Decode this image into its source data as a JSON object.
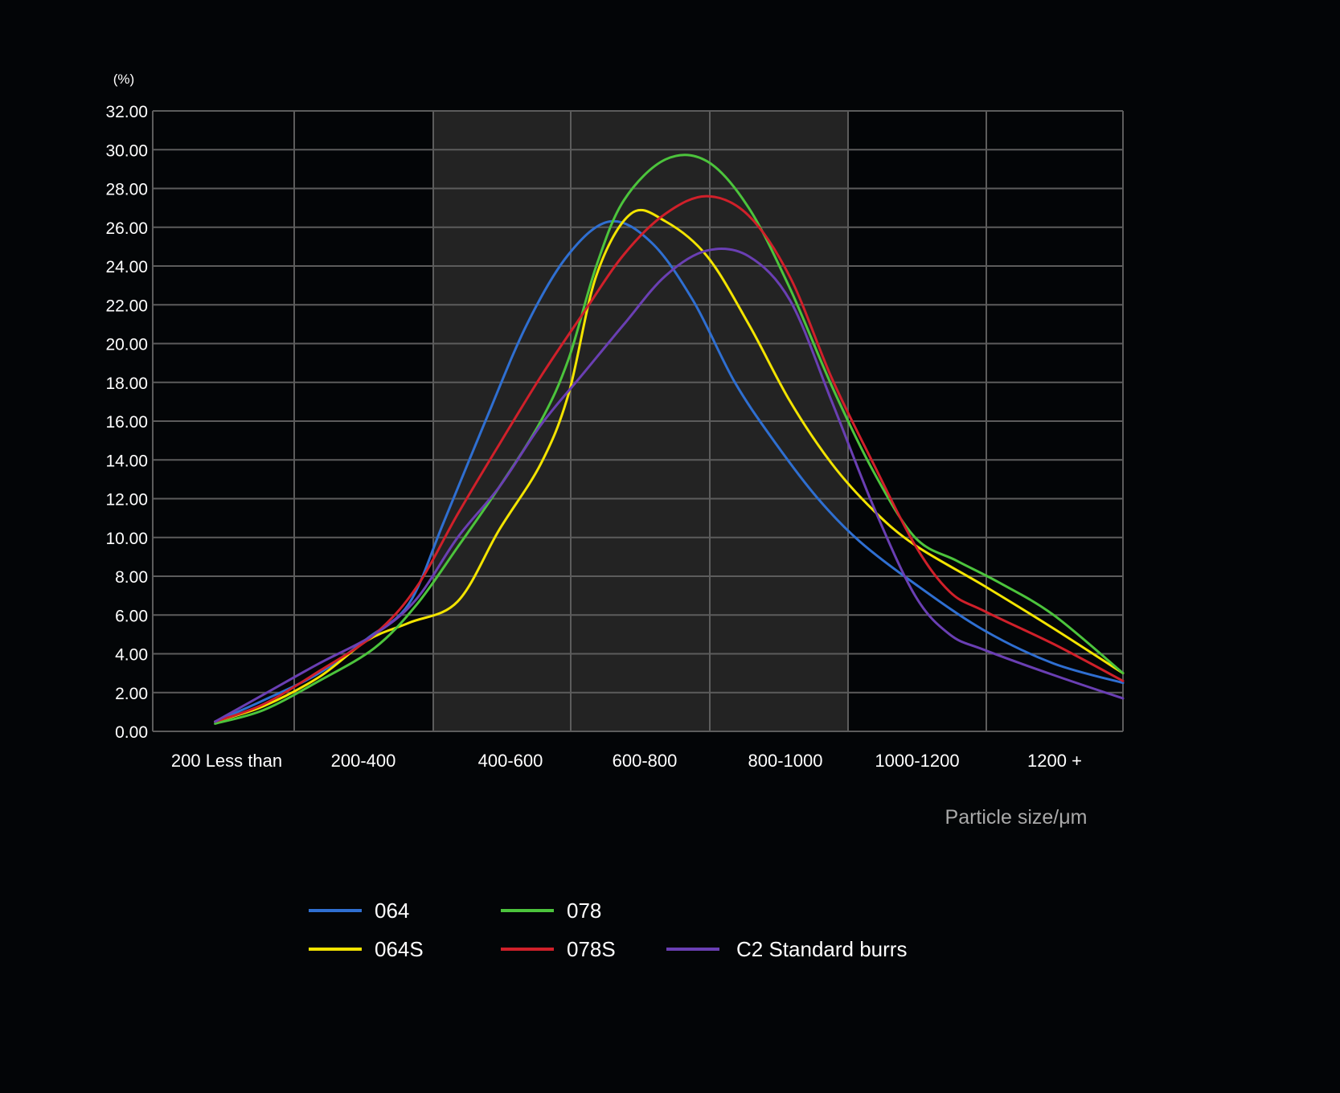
{
  "chart_data": {
    "type": "line",
    "title": "",
    "y_unit": "(%)",
    "xlabel": "Particle size/μm",
    "ylabel": "",
    "ylim": [
      0,
      32
    ],
    "y_ticks": [
      "0.00",
      "2.00",
      "4.00",
      "6.00",
      "8.00",
      "10.00",
      "12.00",
      "14.00",
      "16.00",
      "18.00",
      "20.00",
      "22.00",
      "24.00",
      "26.00",
      "28.00",
      "30.00",
      "32.00"
    ],
    "categories": [
      "200 Less than",
      "200-400",
      "400-600",
      "600-800",
      "800-1000",
      "1000-1200",
      "1200 +"
    ],
    "highlighted_categories": [
      "400-600",
      "600-800",
      "800-1000"
    ],
    "grid": true,
    "legend_position": "bottom",
    "series": [
      {
        "name": "064",
        "color": "#2f6fd1",
        "points": [
          [
            0.45,
            0.5
          ],
          [
            0.8,
            1.6
          ],
          [
            1.2,
            3.0
          ],
          [
            1.55,
            4.8
          ],
          [
            1.85,
            6.6
          ],
          [
            2.1,
            10.8
          ],
          [
            2.4,
            16.0
          ],
          [
            2.7,
            21.0
          ],
          [
            3.0,
            24.6
          ],
          [
            3.3,
            26.3
          ],
          [
            3.6,
            25.2
          ],
          [
            3.9,
            22.2
          ],
          [
            4.2,
            18.0
          ],
          [
            4.5,
            14.8
          ],
          [
            4.8,
            12.0
          ],
          [
            5.1,
            9.8
          ],
          [
            5.5,
            7.6
          ],
          [
            6.0,
            5.2
          ],
          [
            6.5,
            3.5
          ],
          [
            7.0,
            2.5
          ]
        ]
      },
      {
        "name": "064S",
        "color": "#f3e400",
        "points": [
          [
            0.45,
            0.5
          ],
          [
            0.8,
            1.3
          ],
          [
            1.2,
            2.8
          ],
          [
            1.55,
            4.7
          ],
          [
            1.85,
            5.6
          ],
          [
            2.2,
            6.7
          ],
          [
            2.5,
            10.4
          ],
          [
            2.8,
            13.8
          ],
          [
            3.0,
            17.4
          ],
          [
            3.2,
            23.5
          ],
          [
            3.45,
            26.7
          ],
          [
            3.7,
            26.3
          ],
          [
            4.0,
            24.5
          ],
          [
            4.3,
            21.0
          ],
          [
            4.6,
            17.0
          ],
          [
            4.9,
            13.8
          ],
          [
            5.2,
            11.4
          ],
          [
            5.5,
            9.6
          ],
          [
            6.0,
            7.5
          ],
          [
            6.5,
            5.3
          ],
          [
            7.0,
            3.0
          ]
        ]
      },
      {
        "name": "078",
        "color": "#4cc43c",
        "points": [
          [
            0.45,
            0.4
          ],
          [
            0.8,
            1.1
          ],
          [
            1.2,
            2.6
          ],
          [
            1.6,
            4.3
          ],
          [
            1.9,
            6.5
          ],
          [
            2.2,
            9.5
          ],
          [
            2.5,
            12.6
          ],
          [
            2.8,
            16.0
          ],
          [
            3.0,
            19.2
          ],
          [
            3.2,
            24.0
          ],
          [
            3.4,
            27.4
          ],
          [
            3.7,
            29.5
          ],
          [
            4.0,
            29.4
          ],
          [
            4.3,
            27.0
          ],
          [
            4.6,
            22.8
          ],
          [
            4.9,
            17.8
          ],
          [
            5.2,
            13.4
          ],
          [
            5.5,
            10.0
          ],
          [
            5.8,
            8.8
          ],
          [
            6.1,
            7.7
          ],
          [
            6.5,
            6.0
          ],
          [
            7.0,
            3.0
          ]
        ]
      },
      {
        "name": "078S",
        "color": "#d0202a",
        "points": [
          [
            0.45,
            0.5
          ],
          [
            0.8,
            1.4
          ],
          [
            1.2,
            3.1
          ],
          [
            1.6,
            5.0
          ],
          [
            1.9,
            7.4
          ],
          [
            2.2,
            11.2
          ],
          [
            2.5,
            14.8
          ],
          [
            2.8,
            18.3
          ],
          [
            3.1,
            21.5
          ],
          [
            3.4,
            24.6
          ],
          [
            3.7,
            26.7
          ],
          [
            4.0,
            27.6
          ],
          [
            4.3,
            26.6
          ],
          [
            4.6,
            23.4
          ],
          [
            4.9,
            18.2
          ],
          [
            5.2,
            13.8
          ],
          [
            5.5,
            9.6
          ],
          [
            5.75,
            7.2
          ],
          [
            6.0,
            6.2
          ],
          [
            6.5,
            4.5
          ],
          [
            7.0,
            2.6
          ]
        ]
      },
      {
        "name": "C2 Standard burrs",
        "color": "#6a3fb3",
        "points": [
          [
            0.45,
            0.5
          ],
          [
            0.8,
            1.9
          ],
          [
            1.2,
            3.5
          ],
          [
            1.6,
            5.0
          ],
          [
            1.9,
            6.8
          ],
          [
            2.2,
            10.0
          ],
          [
            2.5,
            12.6
          ],
          [
            2.8,
            15.8
          ],
          [
            3.1,
            18.4
          ],
          [
            3.4,
            21.0
          ],
          [
            3.7,
            23.5
          ],
          [
            4.0,
            24.8
          ],
          [
            4.3,
            24.5
          ],
          [
            4.6,
            22.2
          ],
          [
            4.9,
            17.0
          ],
          [
            5.2,
            11.6
          ],
          [
            5.5,
            7.0
          ],
          [
            5.75,
            5.0
          ],
          [
            6.0,
            4.2
          ],
          [
            6.5,
            2.9
          ],
          [
            7.0,
            1.7
          ]
        ]
      }
    ],
    "legend_rows": [
      [
        "064",
        "078"
      ],
      [
        "064S",
        "078S",
        "C2 Standard burrs"
      ]
    ]
  }
}
